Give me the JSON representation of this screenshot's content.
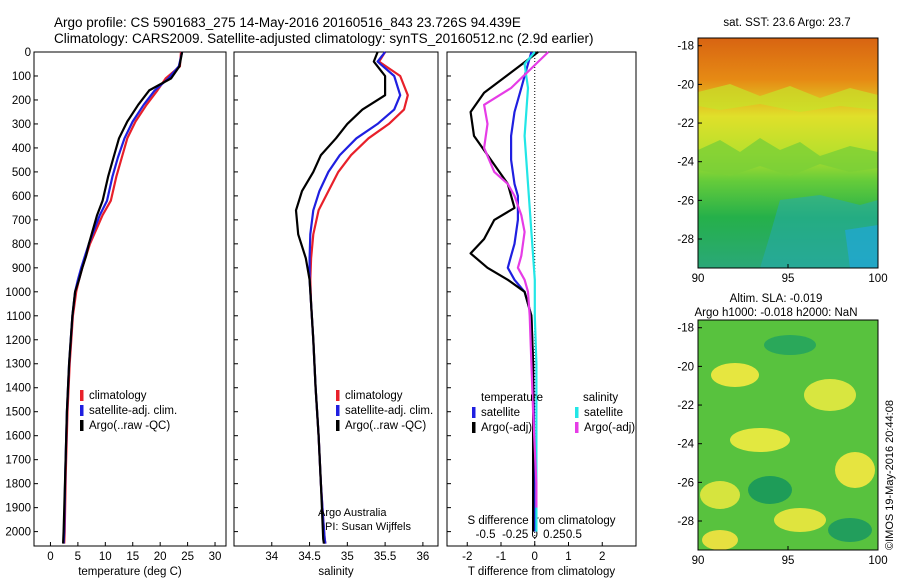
{
  "header": {
    "line1": "Argo profile: CS 5901683_275 14-May-2016 20160516_843 23.726S 94.439E",
    "line2": "Climatology: CARS2009. Satellite-adjusted climatology: synTS_20160512.nc (2.9d earlier)"
  },
  "colors": {
    "climatology": "#e8202a",
    "satellite_adj": "#1f1fe0",
    "argo": "#000000",
    "satellite_s": "#22e6e6",
    "argo_adj_s": "#e63ce6"
  },
  "depth_ticks": [
    "0",
    "100",
    "200",
    "300",
    "400",
    "500",
    "600",
    "700",
    "800",
    "900",
    "1000",
    "1100",
    "1200",
    "1300",
    "1400",
    "1500",
    "1600",
    "1700",
    "1800",
    "1900",
    "2000"
  ],
  "chart_data": [
    {
      "type": "line",
      "xlabel": "temperature (deg C)",
      "xticks": [
        "0",
        "5",
        "10",
        "15",
        "20",
        "25",
        "30"
      ],
      "xlim": [
        -3,
        32
      ],
      "ylim": [
        2060,
        0
      ],
      "legend": [
        "climatology",
        "satellite-adj. clim.",
        "Argo(..raw -QC)"
      ],
      "series": [
        {
          "name": "climatology",
          "key": "climatology",
          "x": [
            23.8,
            23.6,
            21,
            19.5,
            17.5,
            15.5,
            14,
            13,
            12,
            11,
            9.5,
            7.2,
            6.5,
            5.8,
            5.2,
            4.7,
            4.1,
            3.5,
            3.1,
            2.8,
            2.6,
            2.5
          ],
          "y": [
            0,
            60,
            110,
            160,
            220,
            290,
            360,
            440,
            520,
            620,
            680,
            800,
            850,
            900,
            950,
            1000,
            1100,
            1300,
            1500,
            1750,
            2000,
            2050
          ]
        },
        {
          "name": "satellite-adj. clim.",
          "key": "satellite_adj",
          "x": [
            24,
            23.4,
            21.5,
            19,
            17,
            15,
            13.5,
            12.3,
            11.3,
            10.3,
            9,
            7,
            6.3,
            5.6,
            5,
            4.5,
            4,
            3.4,
            3,
            2.7,
            2.5,
            2.4
          ],
          "y": [
            0,
            60,
            110,
            160,
            220,
            290,
            360,
            440,
            520,
            620,
            680,
            800,
            850,
            900,
            950,
            1000,
            1100,
            1300,
            1500,
            1750,
            2000,
            2050
          ]
        },
        {
          "name": "Argo(..raw -QC)",
          "key": "argo",
          "x": [
            24,
            23.5,
            22,
            18,
            16,
            14,
            12.5,
            11.5,
            10.5,
            9.5,
            8.5,
            7,
            6.5,
            5.8,
            5.2,
            4.5,
            4,
            3.4,
            3,
            2.7,
            2.4,
            2.3
          ],
          "y": [
            0,
            60,
            110,
            160,
            220,
            290,
            360,
            440,
            520,
            620,
            680,
            800,
            850,
            900,
            950,
            1000,
            1100,
            1300,
            1500,
            1750,
            2000,
            2050
          ]
        }
      ]
    },
    {
      "type": "line",
      "xlabel": "salinity",
      "xticks": [
        "34",
        "34.5",
        "35",
        "35.5",
        "36"
      ],
      "xlim": [
        33.5,
        36.2
      ],
      "ylim": [
        2060,
        0
      ],
      "legend": [
        "climatology",
        "satellite-adj. clim.",
        "Argo(..raw -QC)"
      ],
      "series": [
        {
          "name": "climatology",
          "key": "climatology",
          "x": [
            35.5,
            35.42,
            35.7,
            35.8,
            35.75,
            35.55,
            35.28,
            35.05,
            34.88,
            34.75,
            34.62,
            34.55,
            34.52,
            34.51,
            34.52,
            34.55,
            34.58,
            34.62,
            34.65,
            34.68,
            34.7,
            34.71
          ],
          "y": [
            0,
            40,
            100,
            180,
            240,
            300,
            360,
            430,
            500,
            580,
            660,
            760,
            860,
            950,
            1050,
            1200,
            1400,
            1600,
            1800,
            1950,
            2030,
            2050
          ]
        },
        {
          "name": "satellite-adj. clim.",
          "key": "satellite_adj",
          "x": [
            35.5,
            35.4,
            35.62,
            35.7,
            35.62,
            35.4,
            35.12,
            34.9,
            34.75,
            34.63,
            34.55,
            34.51,
            34.5,
            34.5,
            34.52,
            34.55,
            34.58,
            34.62,
            34.65,
            34.68,
            34.7,
            34.71
          ],
          "y": [
            0,
            40,
            100,
            180,
            240,
            300,
            360,
            430,
            500,
            580,
            660,
            760,
            860,
            950,
            1050,
            1200,
            1400,
            1600,
            1800,
            1950,
            2030,
            2050
          ]
        },
        {
          "name": "Argo(..raw -QC)",
          "key": "argo",
          "x": [
            35.4,
            35.35,
            35.5,
            35.5,
            35.2,
            35,
            34.85,
            34.65,
            34.55,
            34.4,
            34.32,
            34.35,
            34.45,
            34.5,
            34.52,
            34.55,
            34.58,
            34.62,
            34.65,
            34.67,
            34.68,
            34.69
          ],
          "y": [
            0,
            40,
            100,
            180,
            240,
            300,
            360,
            430,
            500,
            580,
            660,
            760,
            860,
            950,
            1050,
            1200,
            1400,
            1600,
            1800,
            1950,
            2030,
            2050
          ]
        }
      ]
    },
    {
      "type": "line",
      "xlabel": "T difference from climatology",
      "x2label": "S difference from climatology",
      "xticks": [
        "-2",
        "-1",
        "0",
        "1",
        "2"
      ],
      "x2ticks": [
        "-0.5",
        "-0.25",
        "0",
        "0.25",
        "0.5"
      ],
      "xlim": [
        -2.6,
        3
      ],
      "ylim": [
        2060,
        0
      ],
      "legend_headers": [
        "temperature",
        "salinity"
      ],
      "legend": [
        "satellite",
        "Argo(-adj)",
        "satellite",
        "Argo(-adj)"
      ],
      "series": [
        {
          "name": "satellite",
          "key": "satellite_adj",
          "group": "temperature",
          "x": [
            -0.1,
            -0.3,
            -0.4,
            -0.6,
            -0.7,
            -0.7,
            -0.6,
            -0.5,
            -0.5,
            -0.6,
            -0.7,
            -0.8,
            -0.6,
            -0.3,
            -0.1,
            -0.05,
            -0.02,
            0,
            0
          ],
          "y": [
            0,
            100,
            150,
            250,
            350,
            450,
            550,
            600,
            700,
            800,
            850,
            900,
            950,
            1000,
            1100,
            1300,
            1600,
            1900,
            2000
          ]
        },
        {
          "name": "Argo(-adj)",
          "key": "argo",
          "group": "temperature",
          "x": [
            0.1,
            -1.5,
            -1.9,
            -1.8,
            -1.3,
            -0.8,
            -0.6,
            -1.2,
            -1.5,
            -1.9,
            -1.4,
            -0.8,
            -0.3,
            -0.1,
            -0.05,
            -0.05,
            -0.05,
            -0.05,
            -0.05
          ],
          "y": [
            0,
            170,
            250,
            350,
            450,
            550,
            650,
            700,
            780,
            840,
            900,
            950,
            1000,
            1100,
            1300,
            1500,
            1700,
            1900,
            2000
          ]
        },
        {
          "name": "satellite",
          "key": "satellite_s",
          "group": "salinity",
          "x": [
            0,
            -0.3,
            -0.2,
            -0.25,
            -0.3,
            -0.25,
            -0.2,
            -0.15,
            -0.1,
            -0.05,
            0,
            0,
            0.05,
            0.05,
            0.05,
            0.05,
            0.05
          ],
          "y": [
            0,
            50,
            150,
            250,
            350,
            450,
            550,
            650,
            750,
            850,
            950,
            1100,
            1300,
            1500,
            1700,
            1900,
            2000
          ]
        },
        {
          "name": "Argo(-adj)",
          "key": "argo_adj_s",
          "group": "salinity",
          "x": [
            0.4,
            -0.7,
            -1.5,
            -1.4,
            -1.5,
            -1.2,
            -0.8,
            -0.6,
            -0.4,
            -0.3,
            -0.4,
            -0.5,
            -0.3,
            -0.2,
            -0.15,
            -0.1,
            -0.05,
            0.05,
            0.05
          ],
          "y": [
            0,
            150,
            220,
            300,
            400,
            500,
            550,
            600,
            680,
            750,
            850,
            900,
            950,
            1000,
            1100,
            1300,
            1500,
            1800,
            1900
          ]
        }
      ]
    },
    {
      "type": "heatmap",
      "title": "sat. SST: 23.6 Argo: 23.7",
      "xticks": [
        "90",
        "95",
        "100"
      ],
      "yticks": [
        "-18",
        "-20",
        "-22",
        "-24",
        "-26",
        "-28"
      ],
      "xlim": [
        90,
        100
      ],
      "ylim": [
        -29.5,
        -17.6
      ]
    },
    {
      "type": "heatmap",
      "title": "Altim. SLA: -0.019",
      "subtitle": "Argo h1000: -0.018 h2000: NaN",
      "xticks": [
        "90",
        "95",
        "100"
      ],
      "yticks": [
        "-18",
        "-20",
        "-22",
        "-24",
        "-26",
        "-28"
      ],
      "xlim": [
        90,
        100
      ],
      "ylim": [
        -29.5,
        -17.6
      ]
    }
  ],
  "footer": {
    "credit_line1": "Argo Australia",
    "credit_line2": "PI: Susan Wijffels",
    "stamp": "©IMOS 19-May-2016 20:44:08"
  }
}
